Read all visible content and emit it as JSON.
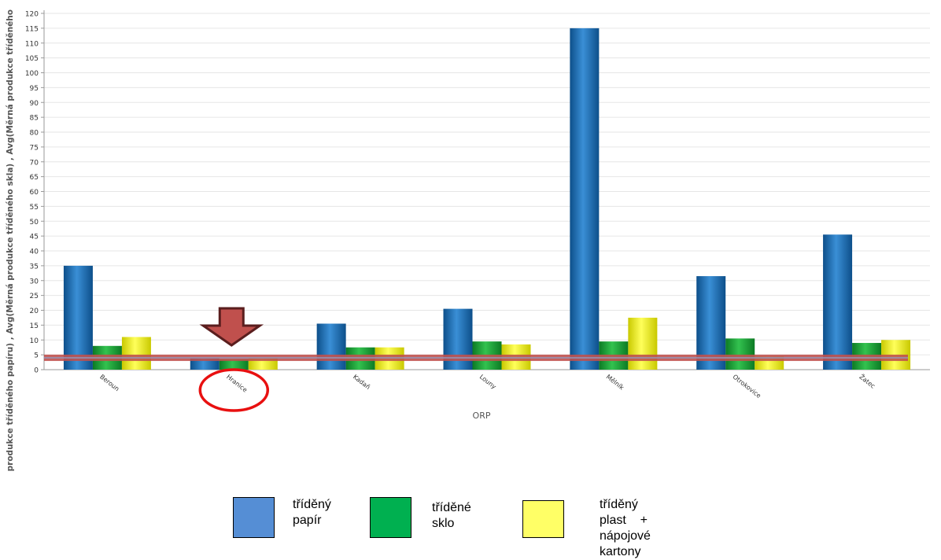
{
  "chart_data": {
    "type": "bar",
    "xlabel": "ORP",
    "ylabel": "Avg(Měrná produkce tříděného papíru) , Avg(Měrná produkce tříděného skla) , Avg(Měrná produkce tříděného",
    "categories": [
      "Beroun",
      "Hranice",
      "Kadaň",
      "Louny",
      "Mělník",
      "Otrokovice",
      "Žatec"
    ],
    "ylim": [
      0,
      120
    ],
    "ytick_step": 5,
    "grid": true,
    "series": [
      {
        "name": "tříděný papír",
        "color": "#1f6fb3",
        "values": [
          35,
          4,
          15.5,
          20.5,
          115,
          31.5,
          45.5
        ]
      },
      {
        "name": "tříděné sklo",
        "color": "#1fa83a",
        "values": [
          8,
          3.5,
          7.5,
          9.5,
          9.5,
          10.5,
          9
        ]
      },
      {
        "name": "tříděný plast + nápojové kartony",
        "color": "#f2f21e",
        "values": [
          11,
          4,
          7.5,
          8.5,
          17.5,
          4.5,
          10
        ]
      }
    ],
    "reference_line": {
      "value": 4,
      "color": "#c0504d"
    },
    "highlight_category": "Hranice",
    "annotation_colors": {
      "arrow": "#c0504d",
      "arrow_outline": "#5a1e1e",
      "circle": "#e81010"
    }
  },
  "legend": {
    "items": [
      {
        "label": "tříděný\npapír",
        "color": "#558ed5"
      },
      {
        "label": "tříděné\nsklo",
        "color": "#00b050"
      },
      {
        "label": "tříděný    plast    +    nápojové\nkartony",
        "color": "#ffff66"
      }
    ]
  }
}
